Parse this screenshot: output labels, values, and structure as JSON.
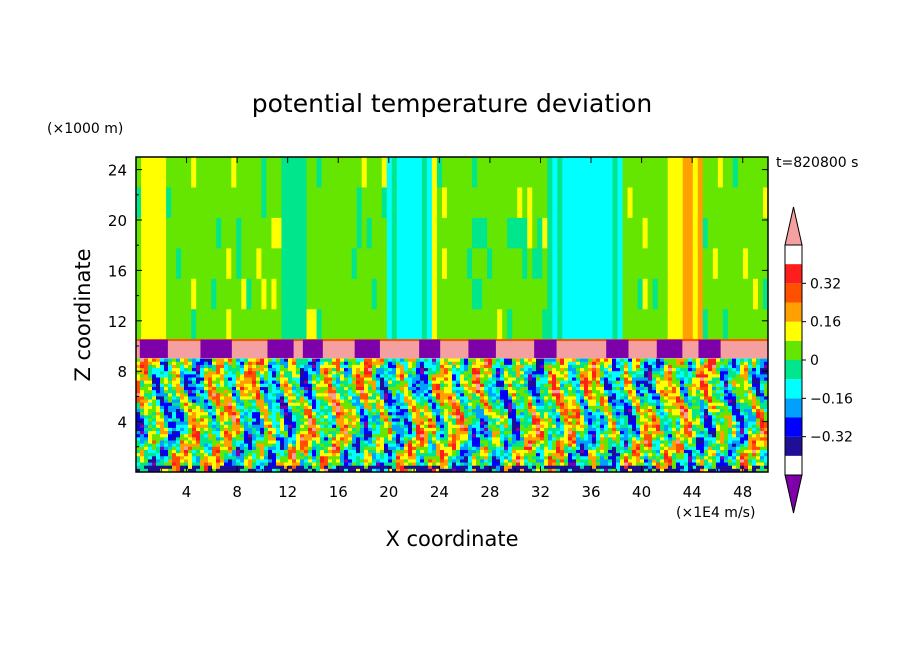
{
  "chart_data": {
    "type": "heatmap",
    "title": "potential temperature deviation",
    "xlabel": "X coordinate",
    "ylabel": "Z coordinate",
    "x_unit": "(×1E4 m/s)",
    "y_unit": "(×1000 m)",
    "time_label": "t=820800 s",
    "xlim": [
      0,
      50
    ],
    "ylim": [
      0,
      25
    ],
    "x_ticks": [
      "4",
      "8",
      "12",
      "16",
      "20",
      "24",
      "28",
      "32",
      "36",
      "40",
      "44",
      "48"
    ],
    "y_ticks": [
      "4",
      "8",
      "12",
      "16",
      "20",
      "24"
    ],
    "colorbar": {
      "levels": [
        -0.48,
        -0.4,
        -0.32,
        -0.24,
        -0.16,
        -0.08,
        0,
        0.08,
        0.16,
        0.24,
        0.32,
        0.4
      ],
      "tick_labels": [
        "0.32",
        "0.16",
        "0",
        "−0.16",
        "−0.32"
      ],
      "tick_values": [
        0.32,
        0.16,
        0,
        -0.16,
        -0.32
      ],
      "colors": [
        "#7d00a8",
        "#1e0f96",
        "#0000ff",
        "#00a0ff",
        "#00ffff",
        "#00e68c",
        "#64e600",
        "#ffff00",
        "#ffa000",
        "#ff5000",
        "#ff1e1e",
        "#f5a0a0"
      ]
    },
    "regions": [
      {
        "name": "upper layer",
        "z_range": [
          10.5,
          25
        ],
        "dominant": "green with cyan and yellow vertical bands",
        "value_approx": 0
      },
      {
        "name": "tropopause band",
        "z_range": [
          9,
          10.5
        ],
        "dominant": "pink with purple patches",
        "value_approx": 0.4
      },
      {
        "name": "lower layer",
        "z_range": [
          0,
          9
        ],
        "dominant": "turbulent mix of all colors",
        "value_approx": null
      }
    ]
  },
  "colors": {
    "background": "#ffffff",
    "frame": "#000000"
  }
}
